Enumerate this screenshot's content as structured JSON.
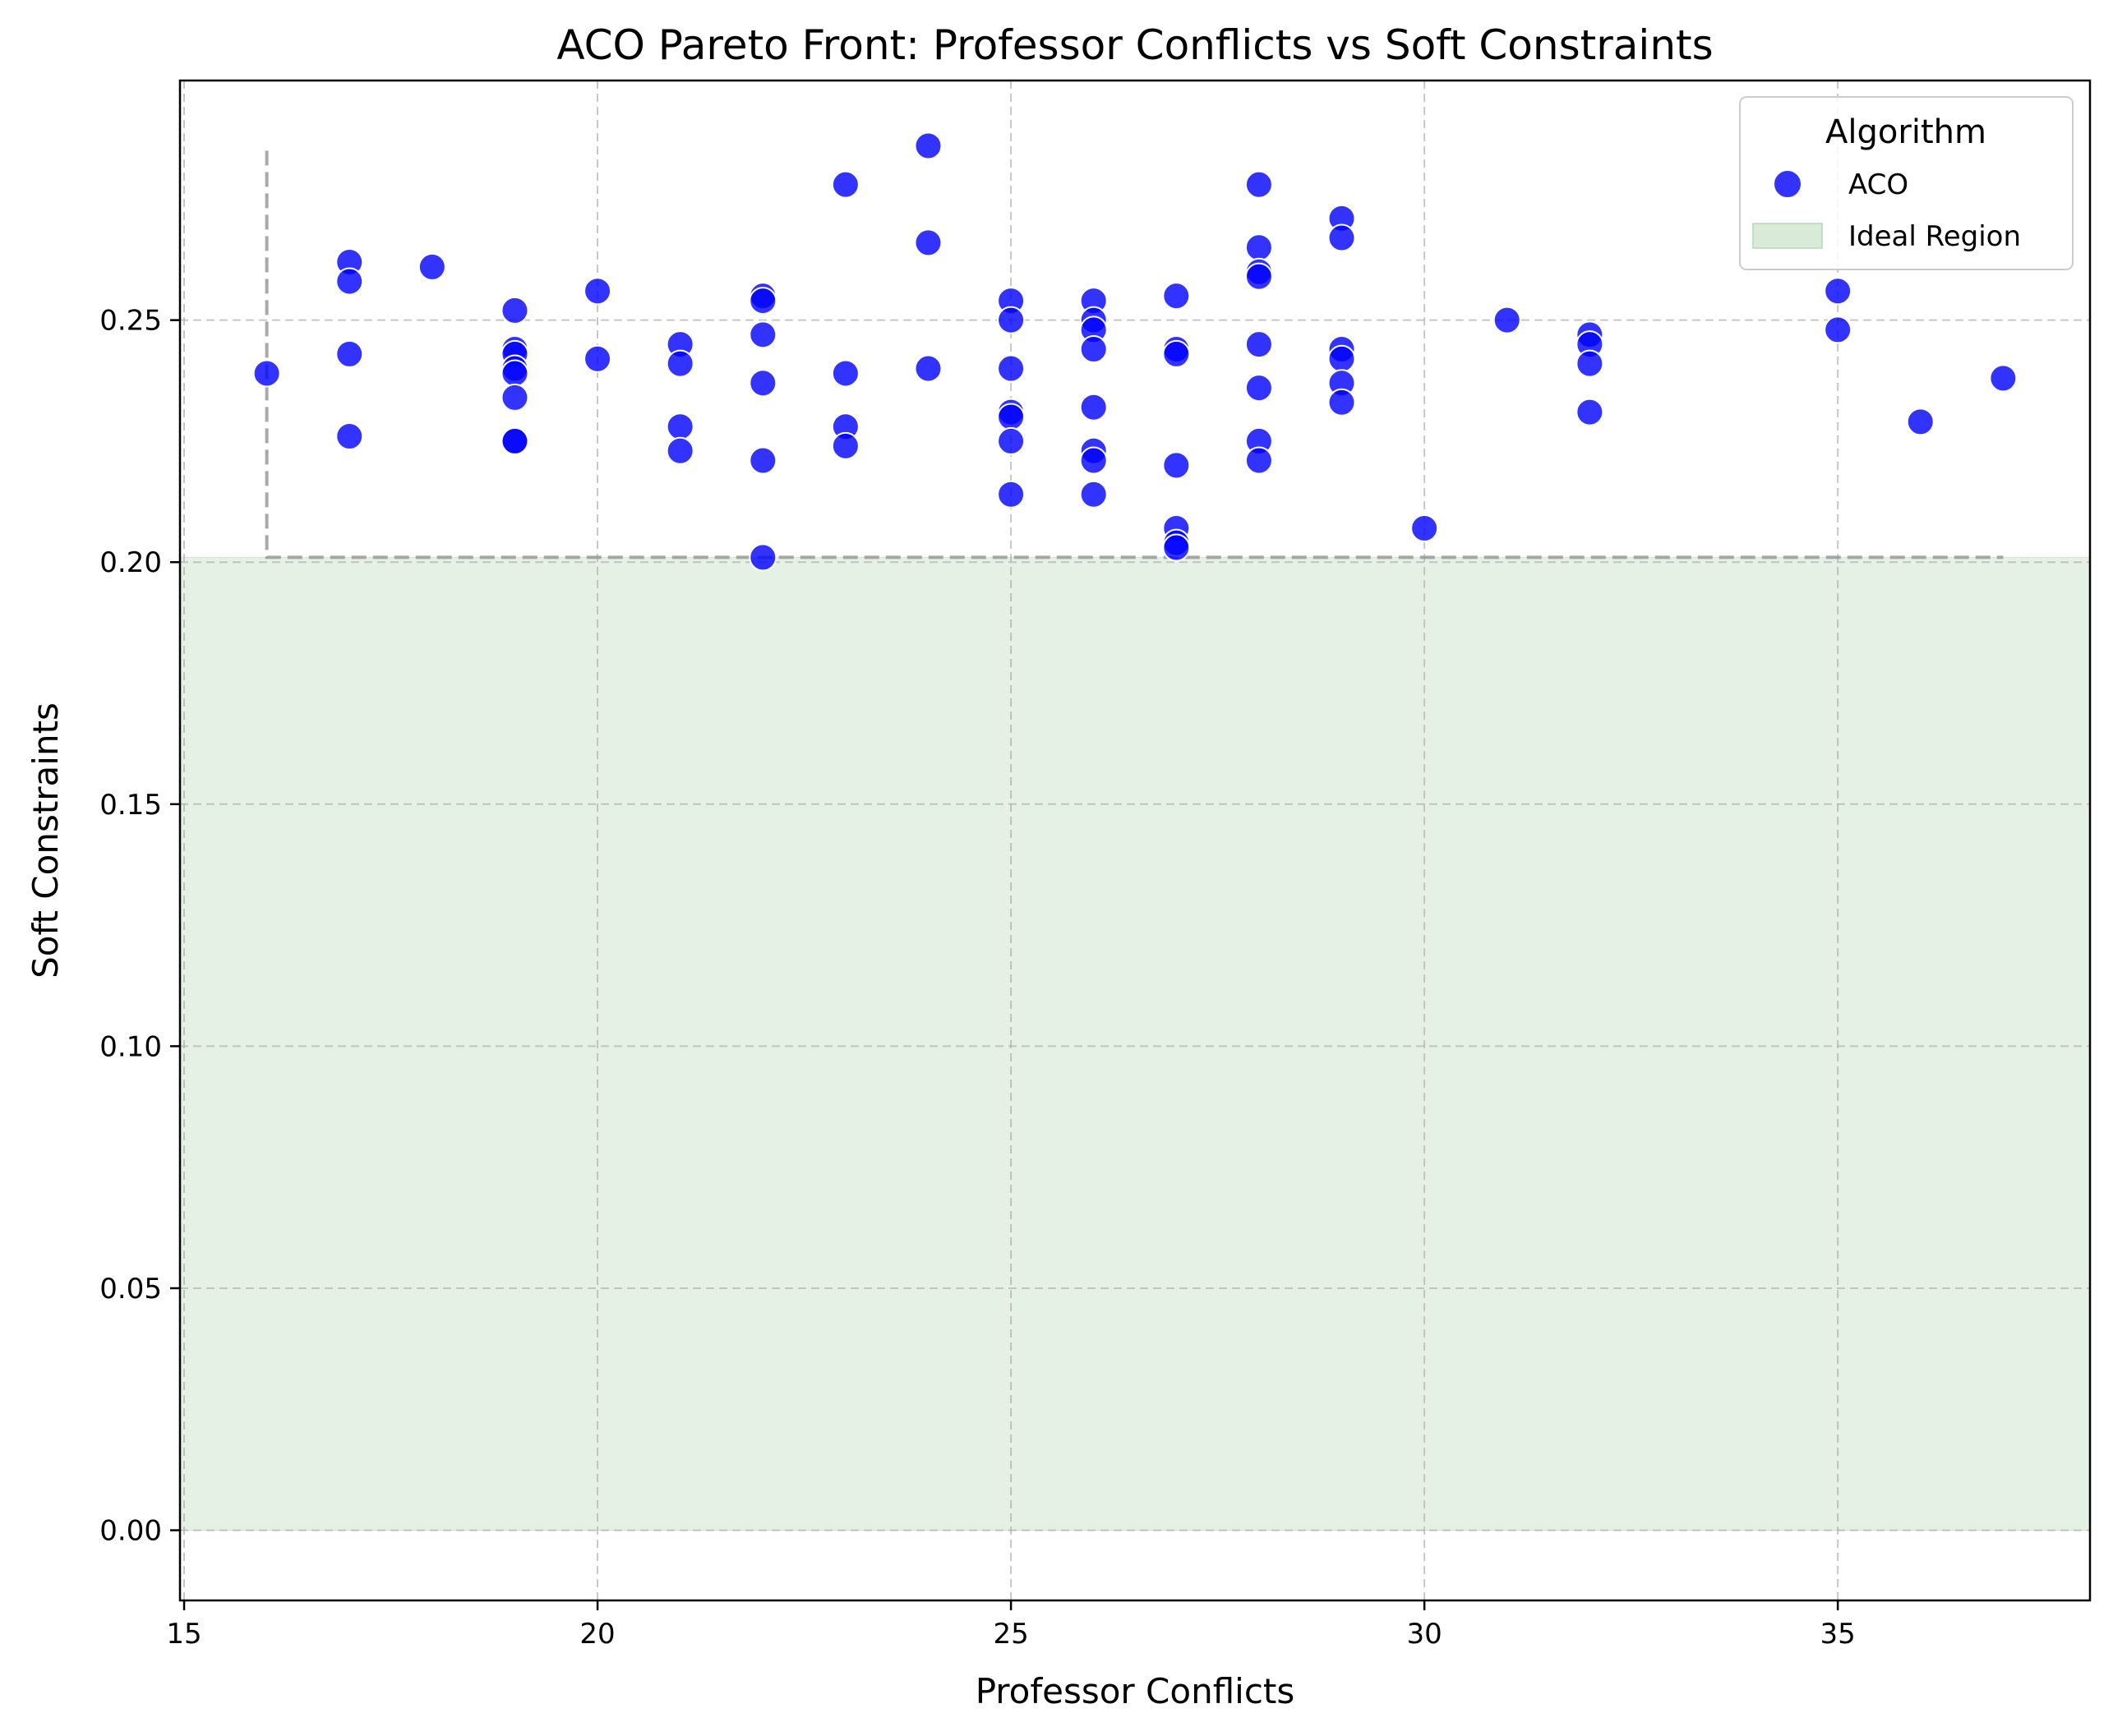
{
  "chart_data": {
    "type": "scatter",
    "title": "ACO Pareto Front: Professor Conflicts vs Soft Constraints",
    "xlabel": "Professor Conflicts",
    "ylabel": "Soft Constraints",
    "xlim": [
      14.95,
      38.05
    ],
    "ylim": [
      -0.0145,
      0.2995
    ],
    "xticks": [
      15,
      20,
      25,
      30,
      35
    ],
    "xtick_labels": [
      "15",
      "20",
      "25",
      "30",
      "35"
    ],
    "yticks": [
      0.0,
      0.05,
      0.1,
      0.15,
      0.2,
      0.25
    ],
    "ytick_labels": [
      "0.00",
      "0.05",
      "0.10",
      "0.15",
      "0.20",
      "0.25"
    ],
    "grid": true,
    "legend": {
      "title": "Algorithm",
      "placement": "top-right",
      "entries": [
        "ACO",
        "Ideal Region"
      ]
    },
    "colors": {
      "points": "#0000ff",
      "points_edge": "#ffffff",
      "ideal_region": "#d8ead8",
      "pareto_line": "#999999",
      "grid": "#b0b0b0"
    },
    "ideal_region": {
      "x": [
        14.95,
        38.05
      ],
      "y": [
        0.0,
        0.201
      ]
    },
    "pareto_front": {
      "x": [
        16,
        16,
        22,
        37
      ],
      "y": [
        0.285,
        0.201,
        0.201,
        0.201
      ]
    },
    "series": [
      {
        "name": "ACO",
        "points": [
          [
            16,
            0.239
          ],
          [
            17,
            0.262
          ],
          [
            17,
            0.258
          ],
          [
            17,
            0.243
          ],
          [
            17,
            0.226
          ],
          [
            18,
            0.261
          ],
          [
            19,
            0.252
          ],
          [
            19,
            0.244
          ],
          [
            19,
            0.243
          ],
          [
            19,
            0.24
          ],
          [
            19,
            0.239
          ],
          [
            19,
            0.234
          ],
          [
            19,
            0.225
          ],
          [
            19,
            0.225
          ],
          [
            20,
            0.256
          ],
          [
            20,
            0.242
          ],
          [
            21,
            0.245
          ],
          [
            21,
            0.241
          ],
          [
            21,
            0.228
          ],
          [
            21,
            0.223
          ],
          [
            22,
            0.255
          ],
          [
            22,
            0.254
          ],
          [
            22,
            0.247
          ],
          [
            22,
            0.237
          ],
          [
            22,
            0.221
          ],
          [
            22,
            0.201
          ],
          [
            23,
            0.278
          ],
          [
            23,
            0.239
          ],
          [
            23,
            0.228
          ],
          [
            23,
            0.224
          ],
          [
            24,
            0.286
          ],
          [
            24,
            0.266
          ],
          [
            24,
            0.24
          ],
          [
            25,
            0.254
          ],
          [
            25,
            0.25
          ],
          [
            25,
            0.24
          ],
          [
            25,
            0.231
          ],
          [
            25,
            0.23
          ],
          [
            25,
            0.225
          ],
          [
            25,
            0.214
          ],
          [
            26,
            0.254
          ],
          [
            26,
            0.25
          ],
          [
            26,
            0.248
          ],
          [
            26,
            0.244
          ],
          [
            26,
            0.232
          ],
          [
            26,
            0.223
          ],
          [
            26,
            0.221
          ],
          [
            26,
            0.214
          ],
          [
            27,
            0.255
          ],
          [
            27,
            0.244
          ],
          [
            27,
            0.243
          ],
          [
            27,
            0.22
          ],
          [
            27,
            0.207
          ],
          [
            27,
            0.204
          ],
          [
            27,
            0.203
          ],
          [
            28,
            0.278
          ],
          [
            28,
            0.265
          ],
          [
            28,
            0.26
          ],
          [
            28,
            0.259
          ],
          [
            28,
            0.245
          ],
          [
            28,
            0.236
          ],
          [
            28,
            0.225
          ],
          [
            28,
            0.221
          ],
          [
            29,
            0.271
          ],
          [
            29,
            0.267
          ],
          [
            29,
            0.244
          ],
          [
            29,
            0.242
          ],
          [
            29,
            0.237
          ],
          [
            29,
            0.233
          ],
          [
            30,
            0.207
          ],
          [
            31,
            0.25
          ],
          [
            32,
            0.247
          ],
          [
            32,
            0.245
          ],
          [
            32,
            0.241
          ],
          [
            32,
            0.231
          ],
          [
            35,
            0.256
          ],
          [
            35,
            0.248
          ],
          [
            36,
            0.229
          ],
          [
            37,
            0.238
          ]
        ]
      }
    ]
  }
}
